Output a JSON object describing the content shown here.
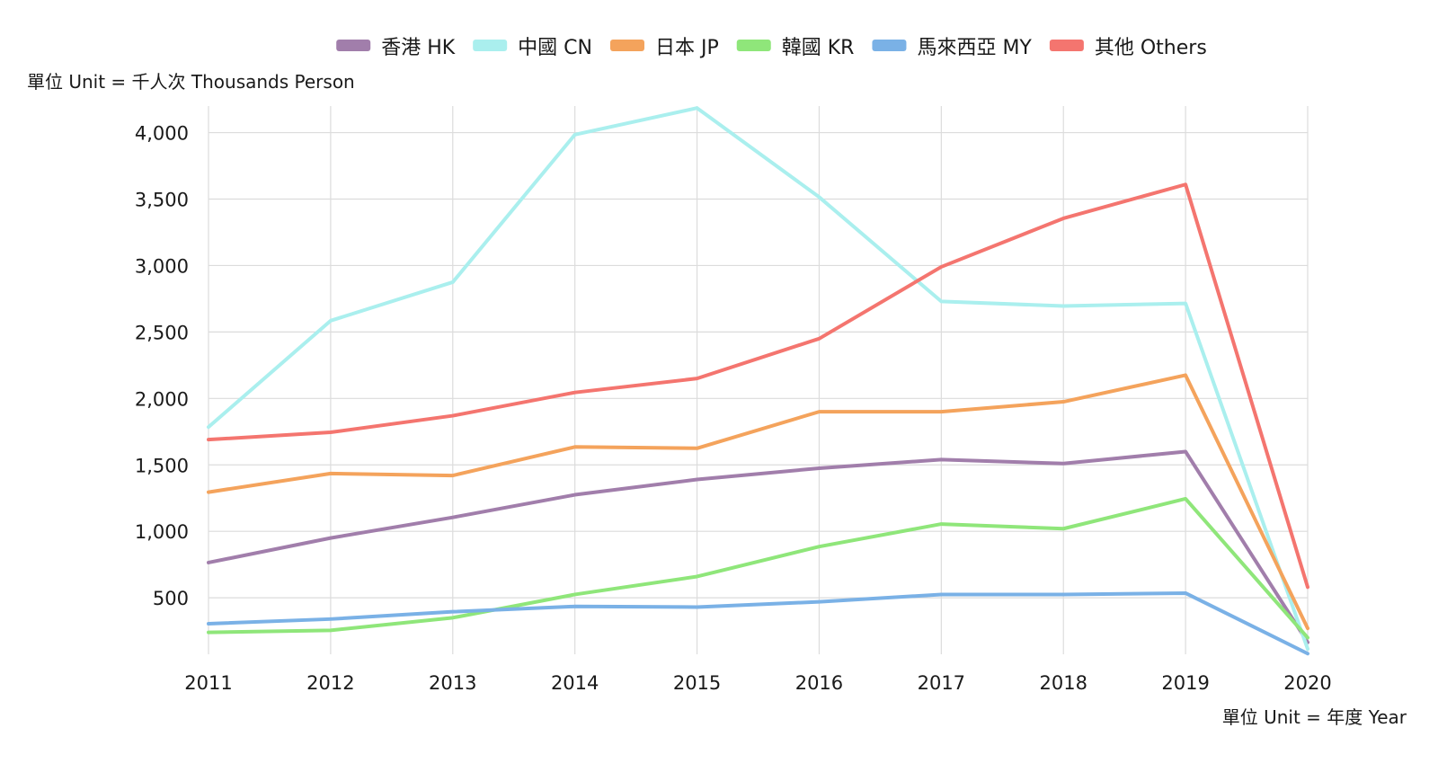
{
  "chart_data": {
    "type": "line",
    "categories": [
      "2011",
      "2012",
      "2013",
      "2014",
      "2015",
      "2016",
      "2017",
      "2018",
      "2019",
      "2020"
    ],
    "series": [
      {
        "name": "香港 HK",
        "color": "#a17eab",
        "values": [
          765,
          950,
          1105,
          1275,
          1390,
          1475,
          1540,
          1510,
          1600,
          165
        ]
      },
      {
        "name": "中國 CN",
        "color": "#aaefee",
        "values": [
          1785,
          2585,
          2875,
          3985,
          4185,
          3515,
          2730,
          2695,
          2715,
          115
        ]
      },
      {
        "name": "日本 JP",
        "color": "#f4a35c",
        "values": [
          1295,
          1435,
          1420,
          1635,
          1625,
          1900,
          1900,
          1975,
          2175,
          270
        ]
      },
      {
        "name": "韓國 KR",
        "color": "#8fe67a",
        "values": [
          240,
          255,
          350,
          525,
          660,
          885,
          1055,
          1020,
          1245,
          200
        ]
      },
      {
        "name": "馬來西亞 MY",
        "color": "#7ab1e6",
        "values": [
          305,
          340,
          395,
          435,
          430,
          470,
          525,
          525,
          535,
          80
        ]
      },
      {
        "name": "其他 Others",
        "color": "#f4756f",
        "values": [
          1690,
          1745,
          1870,
          2045,
          2150,
          2450,
          2990,
          3355,
          3610,
          580
        ]
      }
    ],
    "yticks": [
      "500",
      "1,000",
      "1,500",
      "2,000",
      "2,500",
      "3,000",
      "3,500",
      "4,000"
    ],
    "ylabel": "單位 Unit = 千人次 Thousands Person",
    "xlabel": "單位 Unit = 年度 Year",
    "ylim": [
      75,
      4200
    ],
    "grid": true,
    "legend_position": "top-center"
  }
}
